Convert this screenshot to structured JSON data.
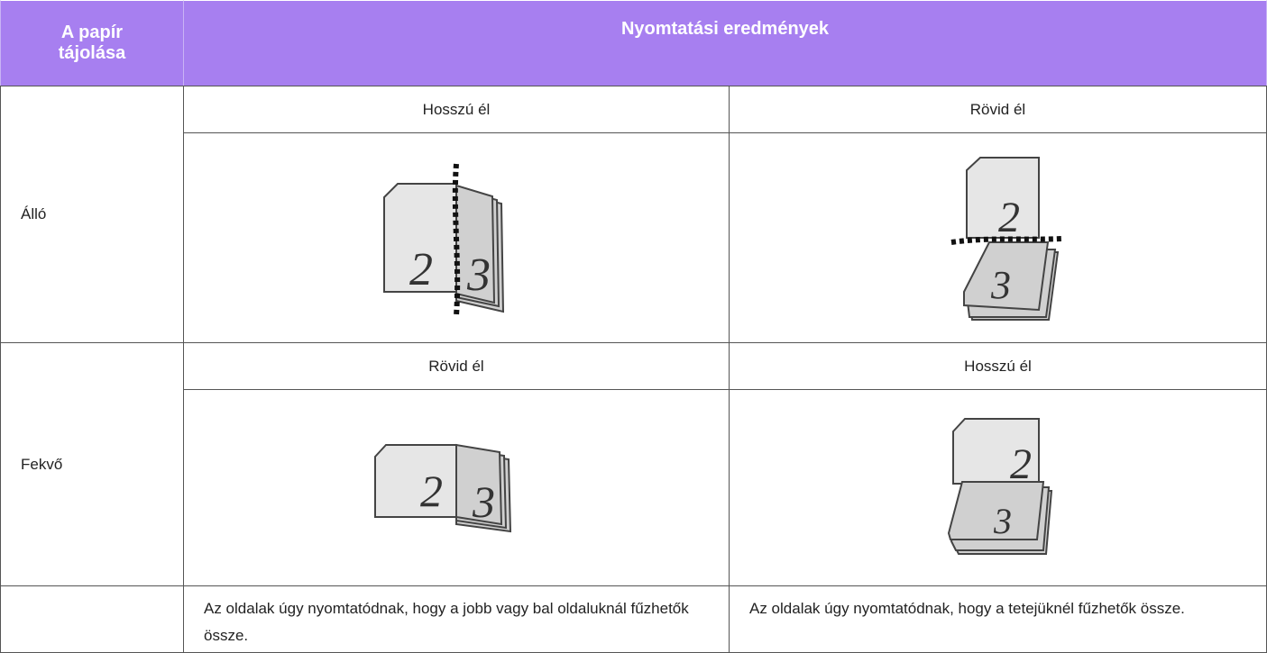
{
  "header": {
    "orientation": "A papír tájolása",
    "results": "Nyomtatási eredmények"
  },
  "rows": [
    {
      "orientation": "Álló",
      "bindings": [
        "Hosszú él",
        "Rövid él"
      ]
    },
    {
      "orientation": "Fekvő",
      "bindings": [
        "Rövid él",
        "Hosszú él"
      ]
    }
  ],
  "notes": [
    "Az oldalak úgy nyomtatódnak, hogy a jobb vagy bal oldaluknál fűzhetők össze.",
    "Az oldalak úgy nyomtatódnak, hogy a tetejüknél fűzhetők össze."
  ],
  "page_numbers": [
    "2",
    "3"
  ]
}
